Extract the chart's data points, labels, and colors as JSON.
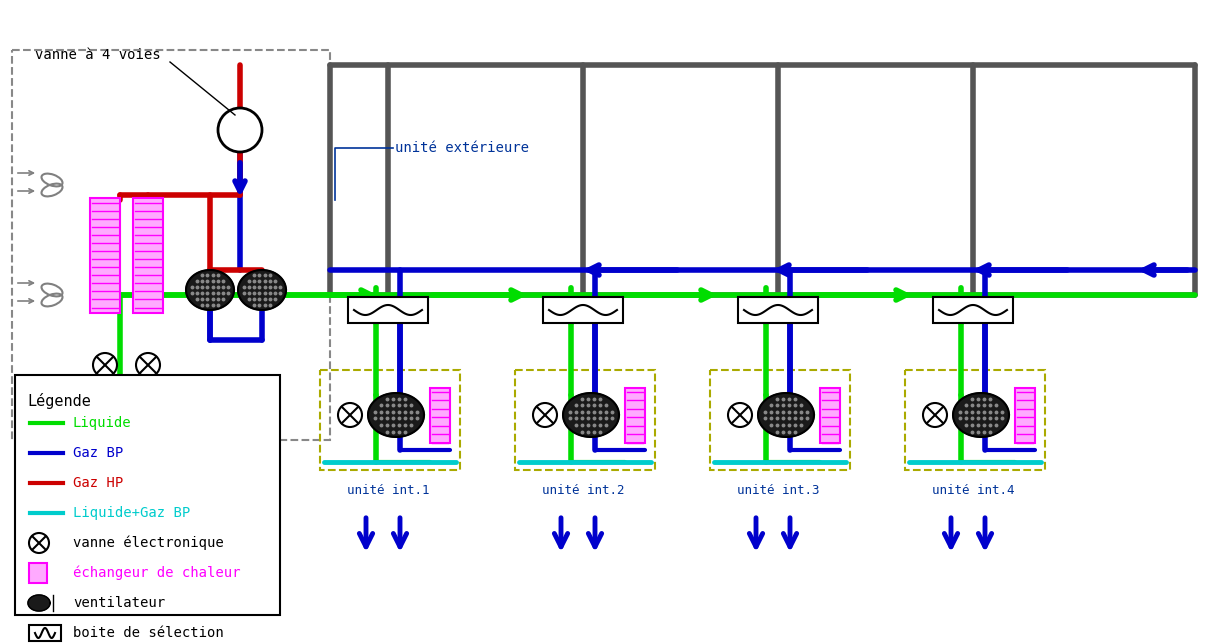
{
  "bg_color": "#ffffff",
  "colors": {
    "green": "#00dd00",
    "blue": "#0000cc",
    "red": "#cc0000",
    "gray": "#555555",
    "cyan": "#00cccc",
    "pink": "#ff00ff",
    "pink_fill": "#ffaaff",
    "dashed_box": "#aaaa00",
    "black": "#000000",
    "label_blue": "#003399"
  },
  "unit_labels": [
    "unité int.1",
    "unité int.2",
    "unité int.3",
    "unité int.4"
  ],
  "title_ext": "unité extérieure",
  "title_valve": "vanne à 4 voies",
  "legend_title": "Légende",
  "legend_line_labels": [
    "Liquide",
    "Gaz BP",
    "Gaz HP",
    "Liquide+Gaz BP"
  ],
  "legend_symbol_labels": [
    "vanne électronique",
    "échangeur de chaleur",
    "ventilateur",
    "boite de sélection"
  ],
  "lw_pipe": 3.5,
  "lw_thin": 1.5
}
